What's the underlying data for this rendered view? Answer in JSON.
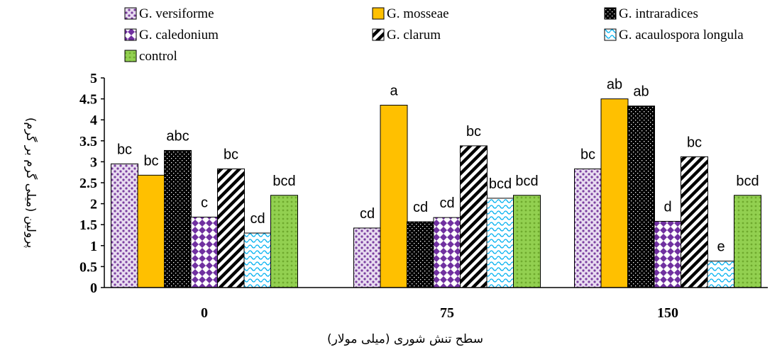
{
  "chart_data": {
    "type": "bar",
    "title": "",
    "xlabel": "سطح تنش شوری (میلی مولار)",
    "ylabel": "پرولین (میلی گرم بر گرم)",
    "ylim": [
      0,
      5
    ],
    "yticks": [
      "0",
      "0.5",
      "1",
      "1.5",
      "2",
      "2.5",
      "3",
      "3.5",
      "4",
      "4.5",
      "5"
    ],
    "categories": [
      "0",
      "75",
      "150"
    ],
    "grid": false,
    "legend_position": "top",
    "series": [
      {
        "name": "G. versiforme",
        "values": [
          2.95,
          1.42,
          2.83
        ],
        "labels": [
          "bc",
          "cd",
          "bc"
        ],
        "pattern": "dots",
        "color": "#7b3fa0"
      },
      {
        "name": "G. mosseae",
        "values": [
          2.68,
          4.35,
          4.5
        ],
        "labels": [
          "bc",
          "a",
          "ab"
        ],
        "pattern": "solid",
        "color": "#ffc000"
      },
      {
        "name": "G. intraradices",
        "values": [
          3.27,
          1.57,
          4.33
        ],
        "labels": [
          "abc",
          "cd",
          "ab"
        ],
        "pattern": "dark",
        "color": "#000000"
      },
      {
        "name": "G. caledonium",
        "values": [
          1.68,
          1.67,
          1.58
        ],
        "labels": [
          "c",
          "cd",
          "d"
        ],
        "pattern": "diamond",
        "color": "#7030a0"
      },
      {
        "name": "G. clarum",
        "values": [
          2.83,
          3.38,
          3.12
        ],
        "labels": [
          "bc",
          "bc",
          "bc"
        ],
        "pattern": "diag",
        "color": "#000000"
      },
      {
        "name": "G. acaulospora longula",
        "values": [
          1.3,
          2.13,
          0.63
        ],
        "labels": [
          "cd",
          "bcd",
          "e"
        ],
        "pattern": "wave",
        "color": "#00b0f0"
      },
      {
        "name": "control",
        "values": [
          2.2,
          2.2,
          2.2
        ],
        "labels": [
          "bcd",
          "bcd",
          "bcd"
        ],
        "pattern": "green",
        "color": "#92d050"
      }
    ]
  }
}
